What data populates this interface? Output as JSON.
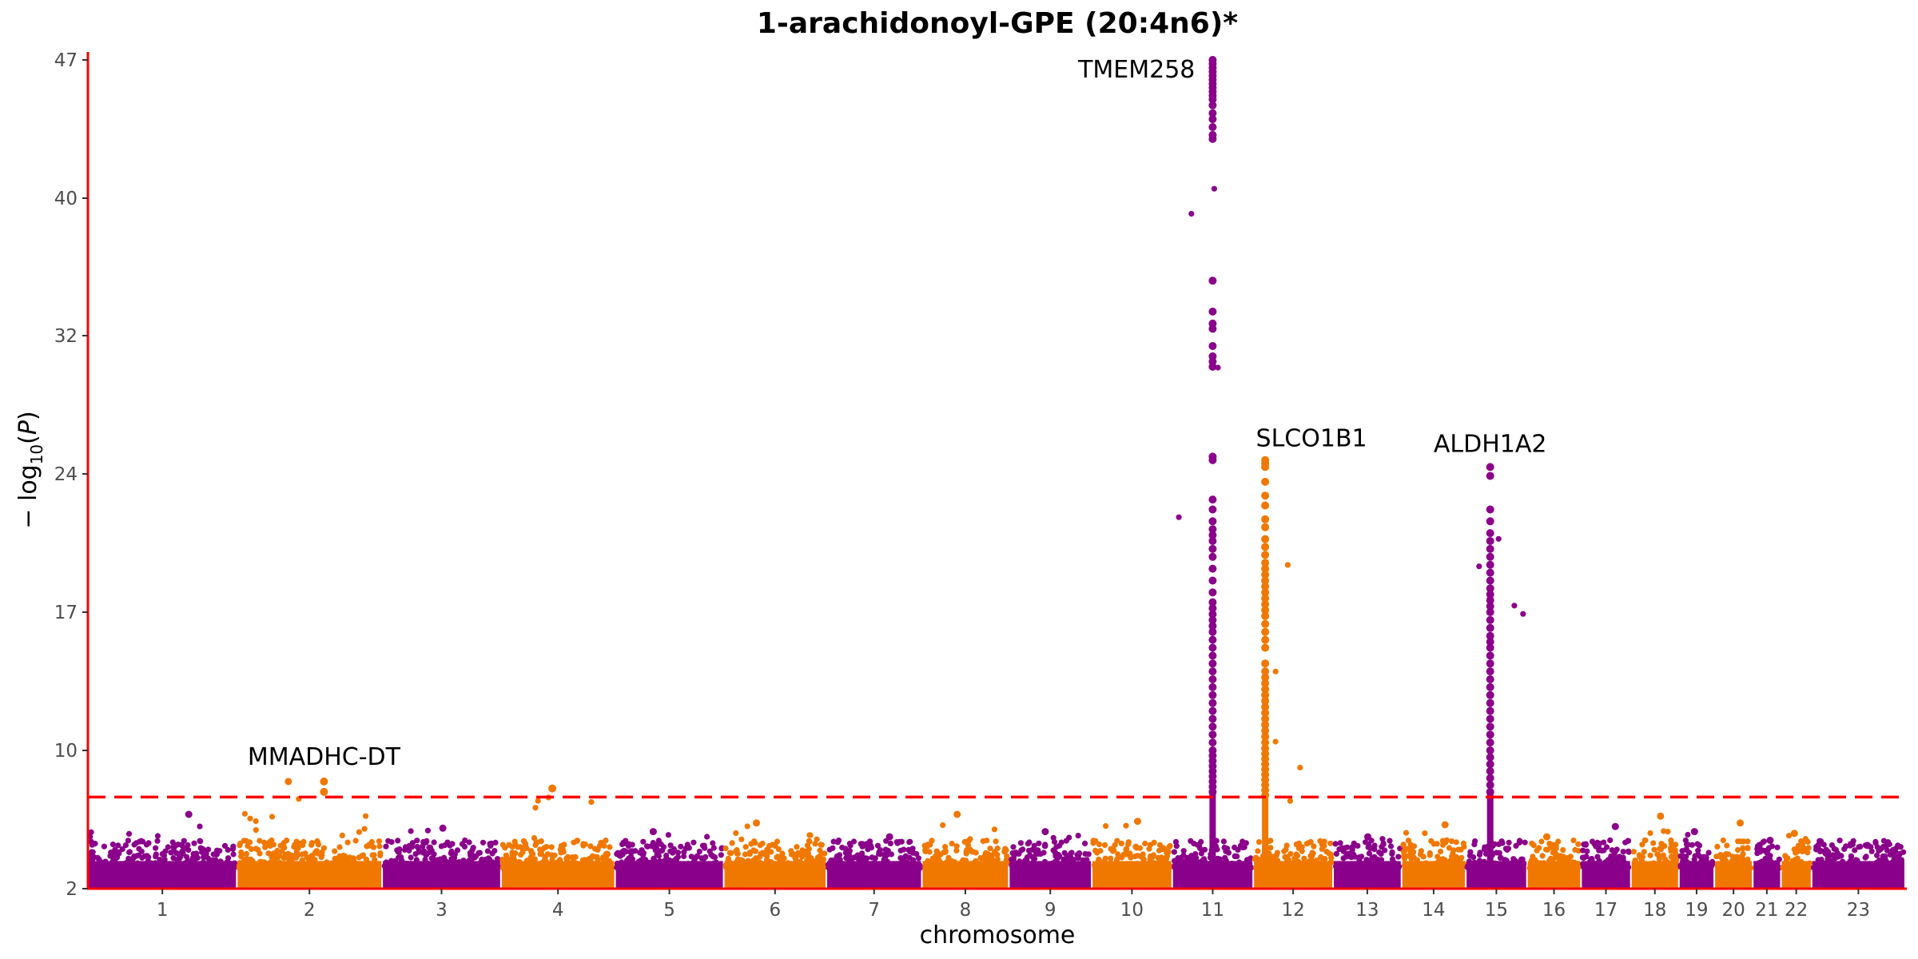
{
  "chart_data": {
    "type": "scatter",
    "subtype": "manhattan",
    "title": "1-arachidonoyl-GPE (20:4n6)*",
    "xlabel": "chromosome",
    "ylabel": "− log10(P)",
    "y_ticks": [
      2,
      10,
      17,
      24,
      32,
      40,
      47
    ],
    "ylim": [
      2,
      47
    ],
    "x_axis_scale": "cumulative genomic position",
    "y_axis_scale": "compressed above 10",
    "significance_threshold": 7.3,
    "threshold_style": "red dashed line",
    "colors": {
      "odd": "#8B008B",
      "even": "#F07800",
      "axis": "#FF0000",
      "threshold": "#FF0000"
    },
    "chromosomes": [
      {
        "label": "1",
        "length": 248,
        "max": 6.3
      },
      {
        "label": "2",
        "length": 242,
        "max": 8.2
      },
      {
        "label": "3",
        "length": 198,
        "max": 5.5
      },
      {
        "label": "4",
        "length": 190,
        "max": 7.8
      },
      {
        "label": "5",
        "length": 181,
        "max": 5.3
      },
      {
        "label": "6",
        "length": 171,
        "max": 5.8
      },
      {
        "label": "7",
        "length": 159,
        "max": 5.0
      },
      {
        "label": "8",
        "length": 145,
        "max": 6.3
      },
      {
        "label": "9",
        "length": 138,
        "max": 5.3
      },
      {
        "label": "10",
        "length": 134,
        "max": 5.9
      },
      {
        "label": "11",
        "length": 135,
        "max": 47
      },
      {
        "label": "12",
        "length": 133,
        "max": 24.8
      },
      {
        "label": "13",
        "length": 114,
        "max": 5.0
      },
      {
        "label": "14",
        "length": 107,
        "max": 5.7
      },
      {
        "label": "15",
        "length": 102,
        "max": 24.4
      },
      {
        "label": "16",
        "length": 90,
        "max": 5.0
      },
      {
        "label": "17",
        "length": 83,
        "max": 5.6
      },
      {
        "label": "18",
        "length": 80,
        "max": 6.2
      },
      {
        "label": "19",
        "length": 59,
        "max": 5.3
      },
      {
        "label": "20",
        "length": 64,
        "max": 5.8
      },
      {
        "label": "21",
        "length": 47,
        "max": 4.8
      },
      {
        "label": "22",
        "length": 51,
        "max": 5.2
      },
      {
        "label": "23",
        "length": 156,
        "max": 4.5
      }
    ],
    "annotations": [
      {
        "label": "TMEM258",
        "chromosome": "11",
        "position": 0.5,
        "value": 47
      },
      {
        "label": "SLCO1B1",
        "chromosome": "12",
        "position": 0.15,
        "value": 24.8
      },
      {
        "label": "ALDH1A2",
        "chromosome": "15",
        "position": 0.4,
        "value": 24.4
      },
      {
        "label": "MMADHC-DT",
        "chromosome": "2",
        "position": 0.6,
        "value": 8.2
      }
    ],
    "peaks": [
      {
        "chromosome": "11",
        "position": 0.5,
        "values": [
          47,
          46.8,
          46.6,
          46.4,
          46.2,
          46.0,
          45.8,
          45.6,
          45.4,
          45.2,
          45.0,
          44.7,
          44.3,
          44.0,
          43.6,
          43.2,
          43.0,
          35.2,
          33.4,
          32.7,
          32.4,
          31.4,
          30.8,
          30.5,
          30.2,
          25.0,
          24.8,
          22.7,
          22.2,
          21.6,
          21.2,
          20.9,
          20.6,
          20.2,
          19.8,
          19.2,
          18.6,
          18.0,
          17.5,
          17.2,
          16.9,
          16.6,
          16.3,
          16.0,
          15.6,
          15.2,
          14.8,
          14.4,
          14.0,
          13.6,
          13.2,
          12.8,
          12.4,
          12.0,
          11.6,
          11.2,
          10.8,
          10.4,
          10.0,
          9.7,
          9.4,
          9.1,
          8.8,
          8.5,
          8.2,
          7.9,
          7.6
        ]
      },
      {
        "chromosome": "12",
        "position": 0.15,
        "values": [
          24.8,
          24.6,
          24.4,
          23.6,
          22.9,
          22.4,
          21.7,
          21.3,
          20.7,
          20.3,
          19.9,
          19.5,
          19.2,
          18.9,
          18.6,
          18.3,
          18.0,
          17.7,
          17.4,
          17.1,
          16.8,
          16.4,
          16.0,
          15.6,
          15.2,
          14.4,
          14.0,
          13.7,
          13.4,
          13.1,
          12.8,
          12.5,
          12.2,
          11.9,
          11.6,
          11.3,
          11.0,
          10.7,
          10.4,
          10.1,
          9.8,
          9.5,
          9.2,
          8.9,
          8.6,
          8.3,
          8.0,
          7.7,
          7.4
        ]
      },
      {
        "chromosome": "15",
        "position": 0.4,
        "values": [
          24.4,
          23.9,
          22.2,
          21.6,
          21.0,
          20.6,
          20.2,
          19.8,
          19.4,
          19.0,
          18.6,
          18.2,
          17.9,
          17.6,
          17.3,
          17.0,
          16.6,
          16.2,
          15.8,
          15.5,
          15.2,
          14.8,
          14.4,
          14.0,
          13.6,
          13.2,
          12.8,
          12.4,
          12.0,
          11.6,
          11.2,
          10.8,
          10.4,
          10.0,
          9.6,
          9.2,
          8.8,
          8.4,
          8.0,
          7.6
        ]
      },
      {
        "chromosome": "2",
        "position": 0.6,
        "values": [
          8.2,
          7.6
        ]
      },
      {
        "chromosome": "4",
        "position": 0.45,
        "values": [
          7.8
        ]
      }
    ]
  }
}
